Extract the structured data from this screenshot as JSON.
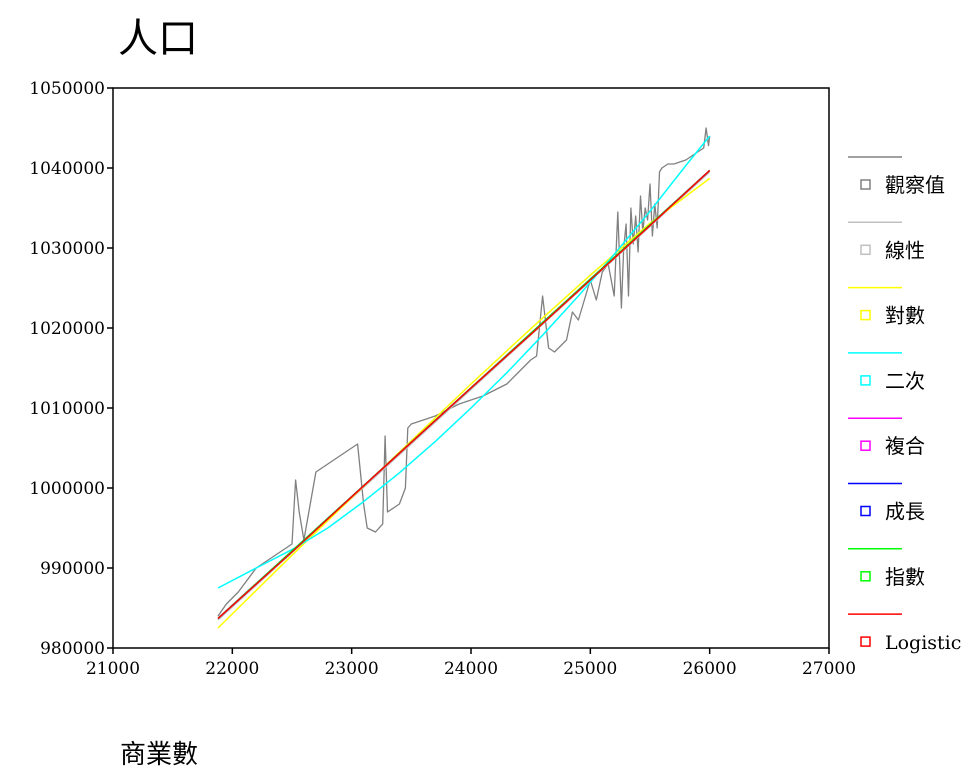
{
  "chart_data": {
    "type": "line",
    "title": "人口",
    "xlabel": "商業數",
    "ylabel": "",
    "xlim": [
      21000,
      27000
    ],
    "ylim": [
      980000,
      1050000
    ],
    "x_ticks": [
      "21000",
      "22000",
      "23000",
      "24000",
      "25000",
      "26000",
      "27000"
    ],
    "y_ticks": [
      "980000",
      "990000",
      "1000000",
      "1010000",
      "1020000",
      "1030000",
      "1040000",
      "1050000"
    ],
    "grid": false,
    "legend_position": "right",
    "series": [
      {
        "name": "觀察值",
        "color": "#808080",
        "x": [
          21880,
          21950,
          22050,
          22200,
          22400,
          22500,
          22530,
          22560,
          22600,
          22700,
          22900,
          23050,
          23100,
          23130,
          23200,
          23260,
          23280,
          23300,
          23400,
          23450,
          23470,
          23500,
          23600,
          23700,
          23900,
          24100,
          24300,
          24500,
          24550,
          24600,
          24650,
          24700,
          24800,
          24850,
          24900,
          25000,
          25050,
          25100,
          25150,
          25200,
          25230,
          25260,
          25280,
          25300,
          25320,
          25340,
          25360,
          25380,
          25400,
          25420,
          25440,
          25460,
          25480,
          25500,
          25520,
          25540,
          25560,
          25580,
          25600,
          25650,
          25700,
          25800,
          25900,
          25950,
          25970,
          25990,
          26000
        ],
        "values": [
          984000,
          985500,
          987000,
          990000,
          992000,
          993000,
          1001000,
          997000,
          993500,
          1002000,
          1004000,
          1005500,
          998000,
          995000,
          994500,
          995500,
          1006500,
          997000,
          998000,
          1000000,
          1007500,
          1008000,
          1008500,
          1009000,
          1010500,
          1011500,
          1013000,
          1016000,
          1016500,
          1024000,
          1017500,
          1017000,
          1018500,
          1022000,
          1021000,
          1026000,
          1023500,
          1027000,
          1028000,
          1024000,
          1034500,
          1022500,
          1030000,
          1033000,
          1024000,
          1035000,
          1030500,
          1034000,
          1029500,
          1036500,
          1032000,
          1035000,
          1033500,
          1038000,
          1031500,
          1035500,
          1032500,
          1039500,
          1040000,
          1040500,
          1040500,
          1041000,
          1042000,
          1042500,
          1045000,
          1042800,
          1044000
        ]
      },
      {
        "name": "線性",
        "color": "#c0c0c0",
        "x": [
          21880,
          26000
        ],
        "values": [
          983500,
          1039500
        ]
      },
      {
        "name": "對數",
        "color": "#ffff00",
        "x": [
          21880,
          22500,
          23000,
          23500,
          24000,
          24500,
          25000,
          25500,
          26000
        ],
        "values": [
          982500,
          991600,
          998800,
          1005900,
          1013000,
          1019900,
          1026600,
          1033100,
          1038700
        ]
      },
      {
        "name": "二次",
        "color": "#00ffff",
        "x": [
          21880,
          22200,
          22500,
          22800,
          23100,
          23400,
          23700,
          24000,
          24300,
          24600,
          24900,
          25200,
          25500,
          25800,
          26000
        ],
        "values": [
          987500,
          990000,
          992300,
          995000,
          998300,
          1001900,
          1005800,
          1010000,
          1014400,
          1019100,
          1024000,
          1029200,
          1034600,
          1040300,
          1044000
        ]
      },
      {
        "name": "複合",
        "color": "#ff00ff",
        "x": [
          21880,
          26000
        ],
        "values": [
          983700,
          1039700
        ]
      },
      {
        "name": "成長",
        "color": "#0000ff",
        "x": [
          21880,
          26000
        ],
        "values": [
          983700,
          1039700
        ]
      },
      {
        "name": "指數",
        "color": "#00ff00",
        "x": [
          21880,
          26000
        ],
        "values": [
          983700,
          1039700
        ]
      },
      {
        "name": "Logistic",
        "color": "#ff0000",
        "x": [
          21880,
          22500,
          23000,
          23500,
          24000,
          24500,
          25000,
          25500,
          26000
        ],
        "values": [
          983700,
          992000,
          998900,
          1005700,
          1012500,
          1019200,
          1026000,
          1032800,
          1039700
        ]
      }
    ]
  }
}
